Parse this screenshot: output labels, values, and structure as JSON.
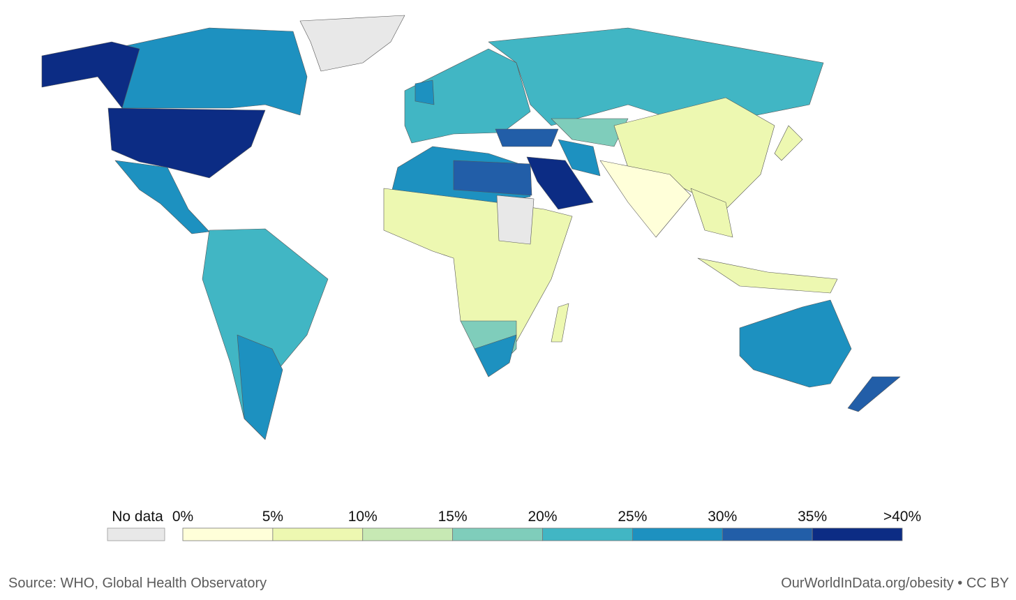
{
  "legend": {
    "no_data_label": "No data",
    "no_data_color": "#e8e8e8",
    "ticks": [
      "0%",
      "5%",
      "10%",
      "15%",
      "20%",
      "25%",
      "30%",
      "35%",
      ">40%"
    ],
    "colors": [
      "#ffffd9",
      "#edf8b1",
      "#c7e9b4",
      "#7fcdbb",
      "#41b6c4",
      "#1d91c0",
      "#225ea8",
      "#0c2c84"
    ]
  },
  "footer": {
    "source": "Source: WHO, Global Health Observatory",
    "credit": "OurWorldInData.org/obesity • CC BY"
  }
}
